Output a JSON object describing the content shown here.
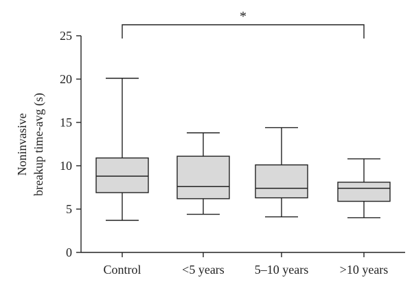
{
  "chart_data": {
    "type": "boxplot",
    "ylabel_lines": [
      "Noninvasive",
      "breakup time-avg (s)"
    ],
    "ylim": [
      0,
      25
    ],
    "yticks": [
      0,
      5,
      10,
      15,
      20,
      25
    ],
    "categories": [
      "Control",
      "<5 years",
      "5–10 years",
      ">10 years"
    ],
    "boxes": [
      {
        "category": "Control",
        "min": 3.7,
        "q1": 6.9,
        "median": 8.8,
        "q3": 10.9,
        "max": 20.1
      },
      {
        "category": "<5 years",
        "min": 4.4,
        "q1": 6.2,
        "median": 7.6,
        "q3": 11.1,
        "max": 13.8
      },
      {
        "category": "5–10 years",
        "min": 4.1,
        "q1": 6.3,
        "median": 7.4,
        "q3": 10.1,
        "max": 14.4
      },
      {
        "category": ">10 years",
        "min": 4.0,
        "q1": 5.9,
        "median": 7.4,
        "q3": 8.1,
        "max": 10.8
      }
    ],
    "significance": {
      "from": "Control",
      "to": ">10 years",
      "label": "*"
    },
    "colors": {
      "box_fill": "#d9d9d9",
      "stroke": "#222222"
    }
  }
}
